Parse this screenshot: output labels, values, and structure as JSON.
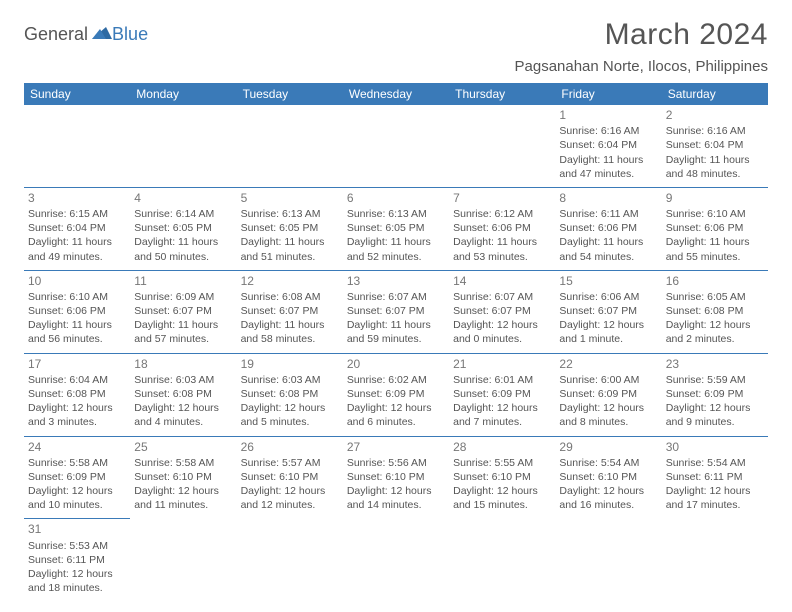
{
  "logo": {
    "text1": "General",
    "text2": "Blue"
  },
  "title": "March 2024",
  "location": "Pagsanahan Norte, Ilocos, Philippines",
  "colors": {
    "header_bg": "#3a7ab8",
    "header_fg": "#ffffff",
    "text": "#555555",
    "daynum": "#777777",
    "border": "#3a7ab8",
    "bg": "#ffffff"
  },
  "weekdays": [
    "Sunday",
    "Monday",
    "Tuesday",
    "Wednesday",
    "Thursday",
    "Friday",
    "Saturday"
  ],
  "weeks": [
    [
      null,
      null,
      null,
      null,
      null,
      {
        "n": "1",
        "sr": "Sunrise: 6:16 AM",
        "ss": "Sunset: 6:04 PM",
        "d1": "Daylight: 11 hours",
        "d2": "and 47 minutes."
      },
      {
        "n": "2",
        "sr": "Sunrise: 6:16 AM",
        "ss": "Sunset: 6:04 PM",
        "d1": "Daylight: 11 hours",
        "d2": "and 48 minutes."
      }
    ],
    [
      {
        "n": "3",
        "sr": "Sunrise: 6:15 AM",
        "ss": "Sunset: 6:04 PM",
        "d1": "Daylight: 11 hours",
        "d2": "and 49 minutes."
      },
      {
        "n": "4",
        "sr": "Sunrise: 6:14 AM",
        "ss": "Sunset: 6:05 PM",
        "d1": "Daylight: 11 hours",
        "d2": "and 50 minutes."
      },
      {
        "n": "5",
        "sr": "Sunrise: 6:13 AM",
        "ss": "Sunset: 6:05 PM",
        "d1": "Daylight: 11 hours",
        "d2": "and 51 minutes."
      },
      {
        "n": "6",
        "sr": "Sunrise: 6:13 AM",
        "ss": "Sunset: 6:05 PM",
        "d1": "Daylight: 11 hours",
        "d2": "and 52 minutes."
      },
      {
        "n": "7",
        "sr": "Sunrise: 6:12 AM",
        "ss": "Sunset: 6:06 PM",
        "d1": "Daylight: 11 hours",
        "d2": "and 53 minutes."
      },
      {
        "n": "8",
        "sr": "Sunrise: 6:11 AM",
        "ss": "Sunset: 6:06 PM",
        "d1": "Daylight: 11 hours",
        "d2": "and 54 minutes."
      },
      {
        "n": "9",
        "sr": "Sunrise: 6:10 AM",
        "ss": "Sunset: 6:06 PM",
        "d1": "Daylight: 11 hours",
        "d2": "and 55 minutes."
      }
    ],
    [
      {
        "n": "10",
        "sr": "Sunrise: 6:10 AM",
        "ss": "Sunset: 6:06 PM",
        "d1": "Daylight: 11 hours",
        "d2": "and 56 minutes."
      },
      {
        "n": "11",
        "sr": "Sunrise: 6:09 AM",
        "ss": "Sunset: 6:07 PM",
        "d1": "Daylight: 11 hours",
        "d2": "and 57 minutes."
      },
      {
        "n": "12",
        "sr": "Sunrise: 6:08 AM",
        "ss": "Sunset: 6:07 PM",
        "d1": "Daylight: 11 hours",
        "d2": "and 58 minutes."
      },
      {
        "n": "13",
        "sr": "Sunrise: 6:07 AM",
        "ss": "Sunset: 6:07 PM",
        "d1": "Daylight: 11 hours",
        "d2": "and 59 minutes."
      },
      {
        "n": "14",
        "sr": "Sunrise: 6:07 AM",
        "ss": "Sunset: 6:07 PM",
        "d1": "Daylight: 12 hours",
        "d2": "and 0 minutes."
      },
      {
        "n": "15",
        "sr": "Sunrise: 6:06 AM",
        "ss": "Sunset: 6:07 PM",
        "d1": "Daylight: 12 hours",
        "d2": "and 1 minute."
      },
      {
        "n": "16",
        "sr": "Sunrise: 6:05 AM",
        "ss": "Sunset: 6:08 PM",
        "d1": "Daylight: 12 hours",
        "d2": "and 2 minutes."
      }
    ],
    [
      {
        "n": "17",
        "sr": "Sunrise: 6:04 AM",
        "ss": "Sunset: 6:08 PM",
        "d1": "Daylight: 12 hours",
        "d2": "and 3 minutes."
      },
      {
        "n": "18",
        "sr": "Sunrise: 6:03 AM",
        "ss": "Sunset: 6:08 PM",
        "d1": "Daylight: 12 hours",
        "d2": "and 4 minutes."
      },
      {
        "n": "19",
        "sr": "Sunrise: 6:03 AM",
        "ss": "Sunset: 6:08 PM",
        "d1": "Daylight: 12 hours",
        "d2": "and 5 minutes."
      },
      {
        "n": "20",
        "sr": "Sunrise: 6:02 AM",
        "ss": "Sunset: 6:09 PM",
        "d1": "Daylight: 12 hours",
        "d2": "and 6 minutes."
      },
      {
        "n": "21",
        "sr": "Sunrise: 6:01 AM",
        "ss": "Sunset: 6:09 PM",
        "d1": "Daylight: 12 hours",
        "d2": "and 7 minutes."
      },
      {
        "n": "22",
        "sr": "Sunrise: 6:00 AM",
        "ss": "Sunset: 6:09 PM",
        "d1": "Daylight: 12 hours",
        "d2": "and 8 minutes."
      },
      {
        "n": "23",
        "sr": "Sunrise: 5:59 AM",
        "ss": "Sunset: 6:09 PM",
        "d1": "Daylight: 12 hours",
        "d2": "and 9 minutes."
      }
    ],
    [
      {
        "n": "24",
        "sr": "Sunrise: 5:58 AM",
        "ss": "Sunset: 6:09 PM",
        "d1": "Daylight: 12 hours",
        "d2": "and 10 minutes."
      },
      {
        "n": "25",
        "sr": "Sunrise: 5:58 AM",
        "ss": "Sunset: 6:10 PM",
        "d1": "Daylight: 12 hours",
        "d2": "and 11 minutes."
      },
      {
        "n": "26",
        "sr": "Sunrise: 5:57 AM",
        "ss": "Sunset: 6:10 PM",
        "d1": "Daylight: 12 hours",
        "d2": "and 12 minutes."
      },
      {
        "n": "27",
        "sr": "Sunrise: 5:56 AM",
        "ss": "Sunset: 6:10 PM",
        "d1": "Daylight: 12 hours",
        "d2": "and 14 minutes."
      },
      {
        "n": "28",
        "sr": "Sunrise: 5:55 AM",
        "ss": "Sunset: 6:10 PM",
        "d1": "Daylight: 12 hours",
        "d2": "and 15 minutes."
      },
      {
        "n": "29",
        "sr": "Sunrise: 5:54 AM",
        "ss": "Sunset: 6:10 PM",
        "d1": "Daylight: 12 hours",
        "d2": "and 16 minutes."
      },
      {
        "n": "30",
        "sr": "Sunrise: 5:54 AM",
        "ss": "Sunset: 6:11 PM",
        "d1": "Daylight: 12 hours",
        "d2": "and 17 minutes."
      }
    ],
    [
      {
        "n": "31",
        "sr": "Sunrise: 5:53 AM",
        "ss": "Sunset: 6:11 PM",
        "d1": "Daylight: 12 hours",
        "d2": "and 18 minutes."
      },
      null,
      null,
      null,
      null,
      null,
      null
    ]
  ]
}
